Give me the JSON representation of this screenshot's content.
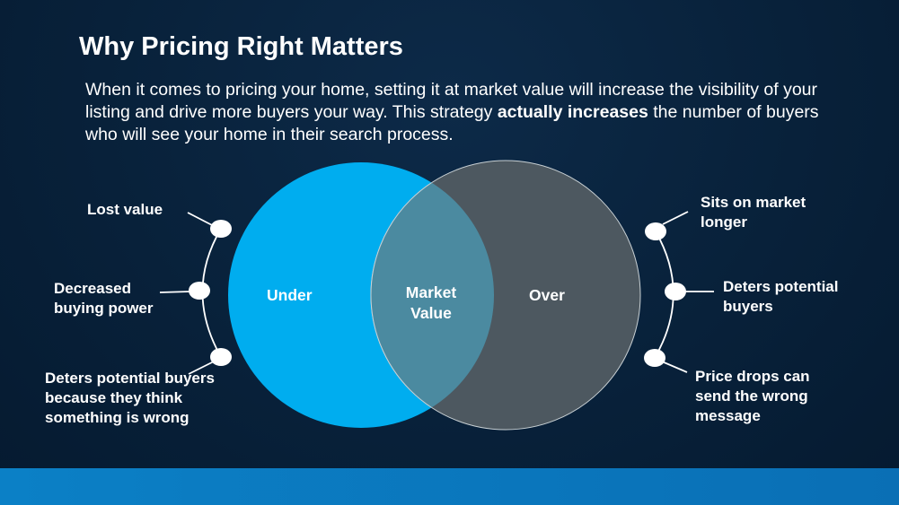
{
  "title": "Why Pricing Right Matters",
  "intro": {
    "before": "When it comes to pricing your home, setting it at market value will increase the visibility of your listing and drive more buyers your way. This strategy ",
    "bold": "actually increases",
    "after": " the number of buyers who will see your home in their search process."
  },
  "venn": {
    "left": {
      "label": "Under",
      "color": "#00adef"
    },
    "center": {
      "label_line1": "Market",
      "label_line2": "Value",
      "color": "#4b8aa0"
    },
    "right": {
      "label": "Over",
      "color": "#4d5860"
    }
  },
  "left_points": [
    "Lost value",
    "Decreased buying power",
    "Deters potential buyers because they think something is wrong"
  ],
  "right_points": [
    "Sits on market longer",
    "Deters potential buyers",
    "Price drops can send the wrong message"
  ],
  "colors": {
    "background": "#08213a",
    "footer": "#0b80c6"
  }
}
